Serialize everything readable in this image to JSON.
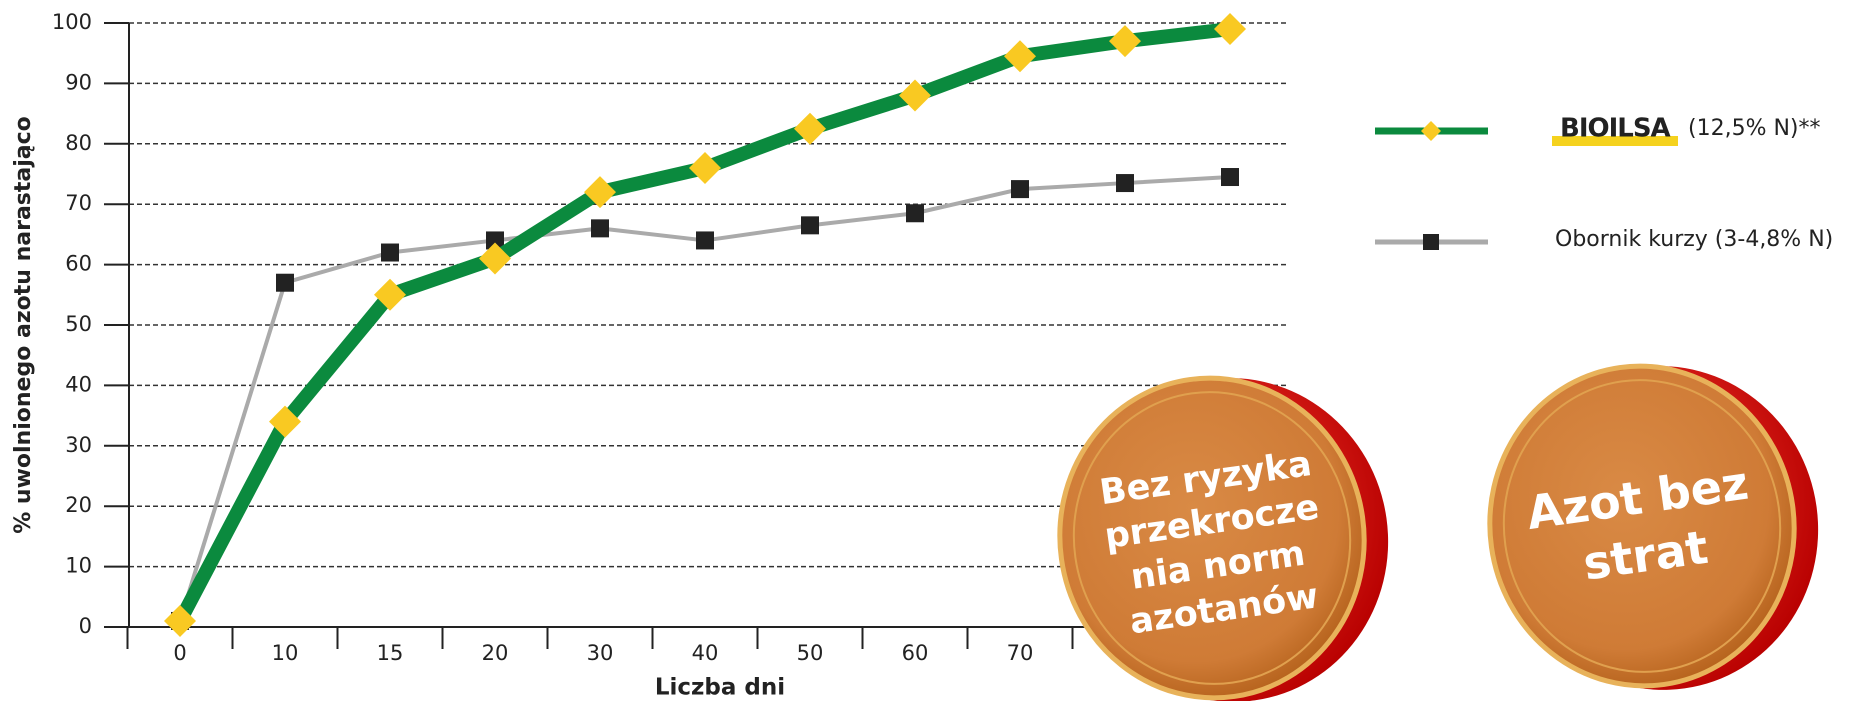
{
  "chart_data": {
    "type": "line",
    "x_label": "Liczba dni",
    "y_label": "% uwolnionego azotu narastająco",
    "categories": [
      "0",
      "10",
      "15",
      "20",
      "30",
      "40",
      "50",
      "60",
      "70",
      null,
      null
    ],
    "series": [
      {
        "name": "BIOILSA",
        "name_suffix": "(12,5% N)**",
        "color": "#0b8a3e",
        "marker_color": "#f9c922",
        "values": [
          1,
          34,
          55,
          61,
          72,
          76,
          82.5,
          88,
          94.5,
          97,
          99
        ]
      },
      {
        "name": "Obornik kurzy (3-4,8% N)",
        "color": "#aaaaaa",
        "marker_color": "#222222",
        "values": [
          1,
          57,
          62,
          64,
          66,
          64,
          66.5,
          68.5,
          72.5,
          73.5,
          74.5
        ]
      }
    ],
    "ylim": [
      0,
      100
    ],
    "yticks": [
      0,
      10,
      20,
      30,
      40,
      50,
      60,
      70,
      80,
      90,
      100
    ],
    "grid": true,
    "annotations": [
      {
        "lines": [
          "Bez ryzyka",
          "przekrocze",
          "nia norm",
          "azotanów"
        ]
      },
      {
        "lines": [
          "Azot bez",
          "strat"
        ]
      }
    ]
  }
}
